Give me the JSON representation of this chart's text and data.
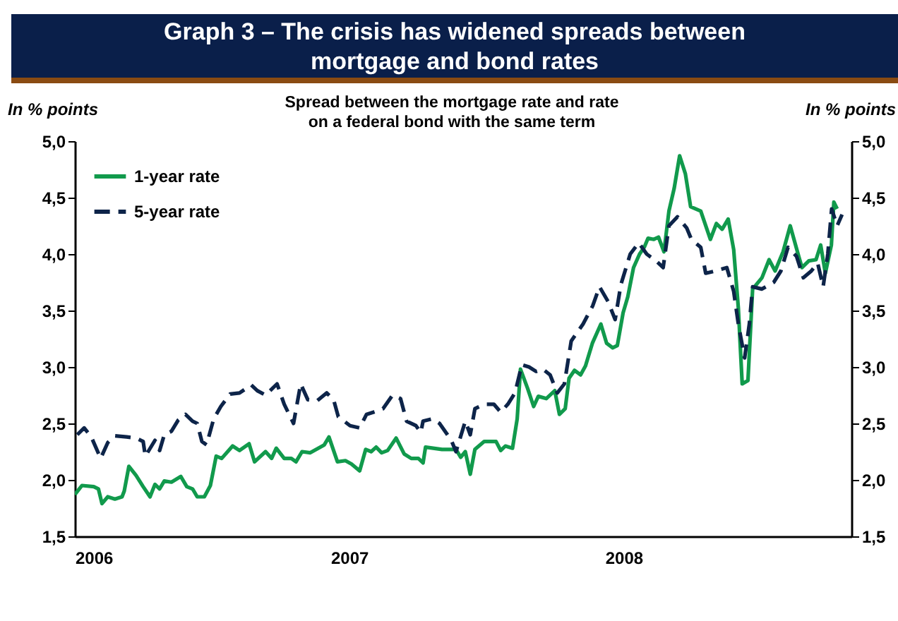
{
  "chart_data": {
    "type": "line",
    "title": "Graph 3 – The crisis has widened spreads between mortgage and bond rates",
    "subtitle": "Spread between the mortgage rate and rate on a federal bond with the same term",
    "ylabel": "In % points",
    "y2label": "In % points",
    "xlim": [
      2006,
      2008.83
    ],
    "xticks": [
      2006,
      2007,
      2008
    ],
    "ylim": [
      1.5,
      5.0
    ],
    "yticks": [
      {
        "value": 1.5,
        "label": "1,5"
      },
      {
        "value": 2.0,
        "label": "2,0"
      },
      {
        "value": 2.5,
        "label": "2,5"
      },
      {
        "value": 3.0,
        "label": "3,0"
      },
      {
        "value": 3.5,
        "label": "3,5"
      },
      {
        "value": 4.0,
        "label": "4,0"
      },
      {
        "value": 4.5,
        "label": "4,5"
      },
      {
        "value": 5.0,
        "label": "5,0"
      }
    ],
    "y2lim": [
      1.5,
      5.0
    ],
    "y2ticks": [
      {
        "value": 1.5,
        "label": "1,5"
      },
      {
        "value": 2.0,
        "label": "2,0"
      },
      {
        "value": 2.5,
        "label": "2,5"
      },
      {
        "value": 3.0,
        "label": "3,0"
      },
      {
        "value": 3.5,
        "label": "3,5"
      },
      {
        "value": 4.0,
        "label": "4,0"
      },
      {
        "value": 4.5,
        "label": "4,5"
      },
      {
        "value": 5.0,
        "label": "5,0"
      }
    ],
    "grid": false,
    "legend": "top left",
    "marker": "none",
    "series": [
      {
        "name": "1-year rate",
        "color": "#119a4c",
        "line_style": "solid",
        "x": [
          2006,
          2006.026,
          2006.069,
          2006.086,
          2006.099,
          2006.12,
          2006.146,
          2006.172,
          2006.18,
          2006.197,
          2006.223,
          2006.249,
          2006.274,
          2006.292,
          2006.309,
          2006.326,
          2006.352,
          2006.386,
          2006.408,
          2006.429,
          2006.446,
          2006.472,
          2006.494,
          2006.515,
          2006.535,
          2006.575,
          2006.6,
          2006.635,
          2006.655,
          2006.695,
          2006.717,
          2006.734,
          2006.763,
          2006.789,
          2006.806,
          2006.828,
          2006.858,
          2006.909,
          2006.926,
          2006.957,
          2006.986,
          2007.008,
          2007.038,
          2007.06,
          2007.08,
          2007.098,
          2007.118,
          2007.14,
          2007.171,
          2007.2,
          2007.226,
          2007.252,
          2007.269,
          2007.278,
          2007.338,
          2007.389,
          2007.406,
          2007.423,
          2007.441,
          2007.458,
          2007.492,
          2007.535,
          2007.552,
          2007.569,
          2007.595,
          2007.612,
          2007.624,
          2007.65,
          2007.672,
          2007.689,
          2007.718,
          2007.749,
          2007.766,
          2007.787,
          2007.801,
          2007.821,
          2007.843,
          2007.861,
          2007.886,
          2007.917,
          2007.938,
          2007.96,
          2007.977,
          2007.998,
          2008.015,
          2008.036,
          2008.058,
          2008.075,
          2008.089,
          2008.11,
          2008.127,
          2008.147,
          2008.165,
          2008.184,
          2008.204,
          2008.225,
          2008.244,
          2008.281,
          2008.316,
          2008.338,
          2008.359,
          2008.381,
          2008.401,
          2008.418,
          2008.432,
          2008.453,
          2008.47,
          2008.504,
          2008.53,
          2008.552,
          2008.581,
          2008.607,
          2008.638,
          2008.65,
          2008.675,
          2008.701,
          2008.718,
          2008.735,
          2008.757,
          2008.766,
          2008.778
        ],
        "values": [
          1.87,
          1.95,
          1.94,
          1.92,
          1.79,
          1.85,
          1.83,
          1.85,
          1.9,
          2.12,
          2.04,
          1.94,
          1.85,
          1.96,
          1.92,
          1.99,
          1.98,
          2.03,
          1.94,
          1.92,
          1.85,
          1.85,
          1.95,
          2.21,
          2.19,
          2.3,
          2.26,
          2.32,
          2.16,
          2.25,
          2.19,
          2.28,
          2.19,
          2.19,
          2.16,
          2.25,
          2.24,
          2.31,
          2.38,
          2.16,
          2.17,
          2.14,
          2.08,
          2.27,
          2.25,
          2.29,
          2.24,
          2.26,
          2.37,
          2.23,
          2.19,
          2.19,
          2.15,
          2.29,
          2.27,
          2.27,
          2.2,
          2.25,
          2.05,
          2.27,
          2.34,
          2.34,
          2.26,
          2.3,
          2.28,
          2.54,
          2.98,
          2.81,
          2.65,
          2.74,
          2.72,
          2.79,
          2.58,
          2.63,
          2.9,
          2.97,
          2.93,
          3.01,
          3.21,
          3.38,
          3.21,
          3.17,
          3.19,
          3.48,
          3.62,
          3.88,
          4.0,
          4.06,
          4.14,
          4.13,
          4.15,
          4.02,
          4.38,
          4.58,
          4.87,
          4.71,
          4.42,
          4.38,
          4.13,
          4.27,
          4.22,
          4.31,
          4.04,
          3.52,
          2.85,
          2.88,
          3.69,
          3.79,
          3.95,
          3.85,
          4.02,
          4.25,
          3.98,
          3.88,
          3.94,
          3.95,
          4.08,
          3.83,
          4.08,
          4.46,
          4.4
        ]
      },
      {
        "name": "5-year rate",
        "color": "#0d2449",
        "line_style": "dashed",
        "x": [
          2006.009,
          2006.034,
          2006.06,
          2006.094,
          2006.12,
          2006.146,
          2006.189,
          2006.223,
          2006.249,
          2006.257,
          2006.292,
          2006.309,
          2006.326,
          2006.352,
          2006.377,
          2006.403,
          2006.429,
          2006.446,
          2006.463,
          2006.48,
          2006.506,
          2006.532,
          2006.566,
          2006.6,
          2006.643,
          2006.665,
          2006.695,
          2006.737,
          2006.763,
          2006.797,
          2006.823,
          2006.849,
          2006.883,
          2006.918,
          2006.943,
          2006.96,
          2007.003,
          2007.038,
          2007.063,
          2007.089,
          2007.123,
          2007.158,
          2007.187,
          2007.209,
          2007.243,
          2007.261,
          2007.269,
          2007.303,
          2007.329,
          2007.372,
          2007.389,
          2007.423,
          2007.441,
          2007.458,
          2007.492,
          2007.527,
          2007.552,
          2007.578,
          2007.604,
          2007.629,
          2007.655,
          2007.681,
          2007.706,
          2007.732,
          2007.758,
          2007.784,
          2007.809,
          2007.852,
          2007.887,
          2007.912,
          2007.943,
          2007.969,
          2007.99,
          2008.024,
          2008.055,
          2008.084,
          2008.118,
          2008.144,
          2008.165,
          2008.196,
          2008.23,
          2008.247,
          2008.281,
          2008.299,
          2008.333,
          2008.376,
          2008.401,
          2008.418,
          2008.441,
          2008.458,
          2008.47,
          2008.504,
          2008.547,
          2008.573,
          2008.599,
          2008.63,
          2008.655,
          2008.684,
          2008.707,
          2008.727,
          2008.744,
          2008.758,
          2008.778,
          2008.796
        ],
        "values": [
          2.4,
          2.46,
          2.38,
          2.19,
          2.33,
          2.39,
          2.38,
          2.37,
          2.34,
          2.21,
          2.35,
          2.26,
          2.4,
          2.43,
          2.53,
          2.58,
          2.52,
          2.5,
          2.34,
          2.31,
          2.54,
          2.65,
          2.76,
          2.77,
          2.84,
          2.79,
          2.75,
          2.85,
          2.67,
          2.5,
          2.85,
          2.71,
          2.7,
          2.77,
          2.71,
          2.56,
          2.48,
          2.46,
          2.58,
          2.6,
          2.63,
          2.75,
          2.72,
          2.52,
          2.48,
          2.42,
          2.52,
          2.54,
          2.5,
          2.35,
          2.25,
          2.52,
          2.4,
          2.63,
          2.67,
          2.67,
          2.6,
          2.67,
          2.77,
          3.02,
          3.0,
          2.96,
          2.98,
          2.93,
          2.77,
          2.85,
          3.23,
          3.38,
          3.54,
          3.71,
          3.58,
          3.42,
          3.73,
          4.0,
          4.1,
          4.0,
          3.94,
          3.88,
          4.25,
          4.33,
          4.23,
          4.13,
          4.06,
          3.83,
          3.85,
          3.88,
          3.67,
          3.38,
          3.08,
          3.38,
          3.71,
          3.69,
          3.75,
          3.85,
          4.06,
          3.98,
          3.79,
          3.85,
          3.92,
          3.71,
          4.0,
          4.4,
          4.25,
          4.35
        ]
      }
    ]
  }
}
